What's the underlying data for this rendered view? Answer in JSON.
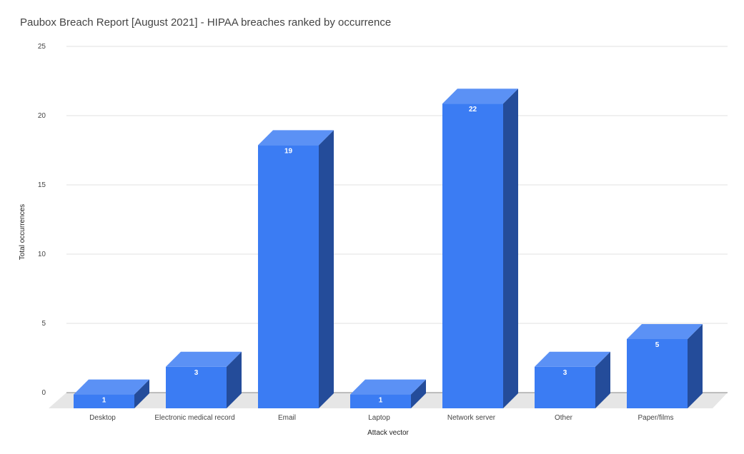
{
  "chart_data": {
    "type": "bar",
    "title": "Paubox Breach Report [August 2021] - HIPAA breaches ranked by occurrence",
    "xlabel": "Attack vector",
    "ylabel": "Total occurrences",
    "categories": [
      "Desktop",
      "Electronic medical record",
      "Email",
      "Laptop",
      "Network server",
      "Other",
      "Paper/films"
    ],
    "values": [
      1,
      3,
      19,
      1,
      22,
      3,
      5
    ],
    "data_labels": [
      "1",
      "3",
      "19",
      "1",
      "22",
      "3",
      "5"
    ],
    "yticks": [
      "0",
      "5",
      "10",
      "15",
      "20",
      "25"
    ],
    "ylim": [
      0,
      25
    ],
    "grid": true,
    "legend": "none",
    "style": "3d",
    "colors": {
      "bar_front": "#3b7cf3",
      "bar_top": "#5b91f5",
      "bar_side": "#244c9a",
      "floor": "#e6e6e6"
    }
  }
}
